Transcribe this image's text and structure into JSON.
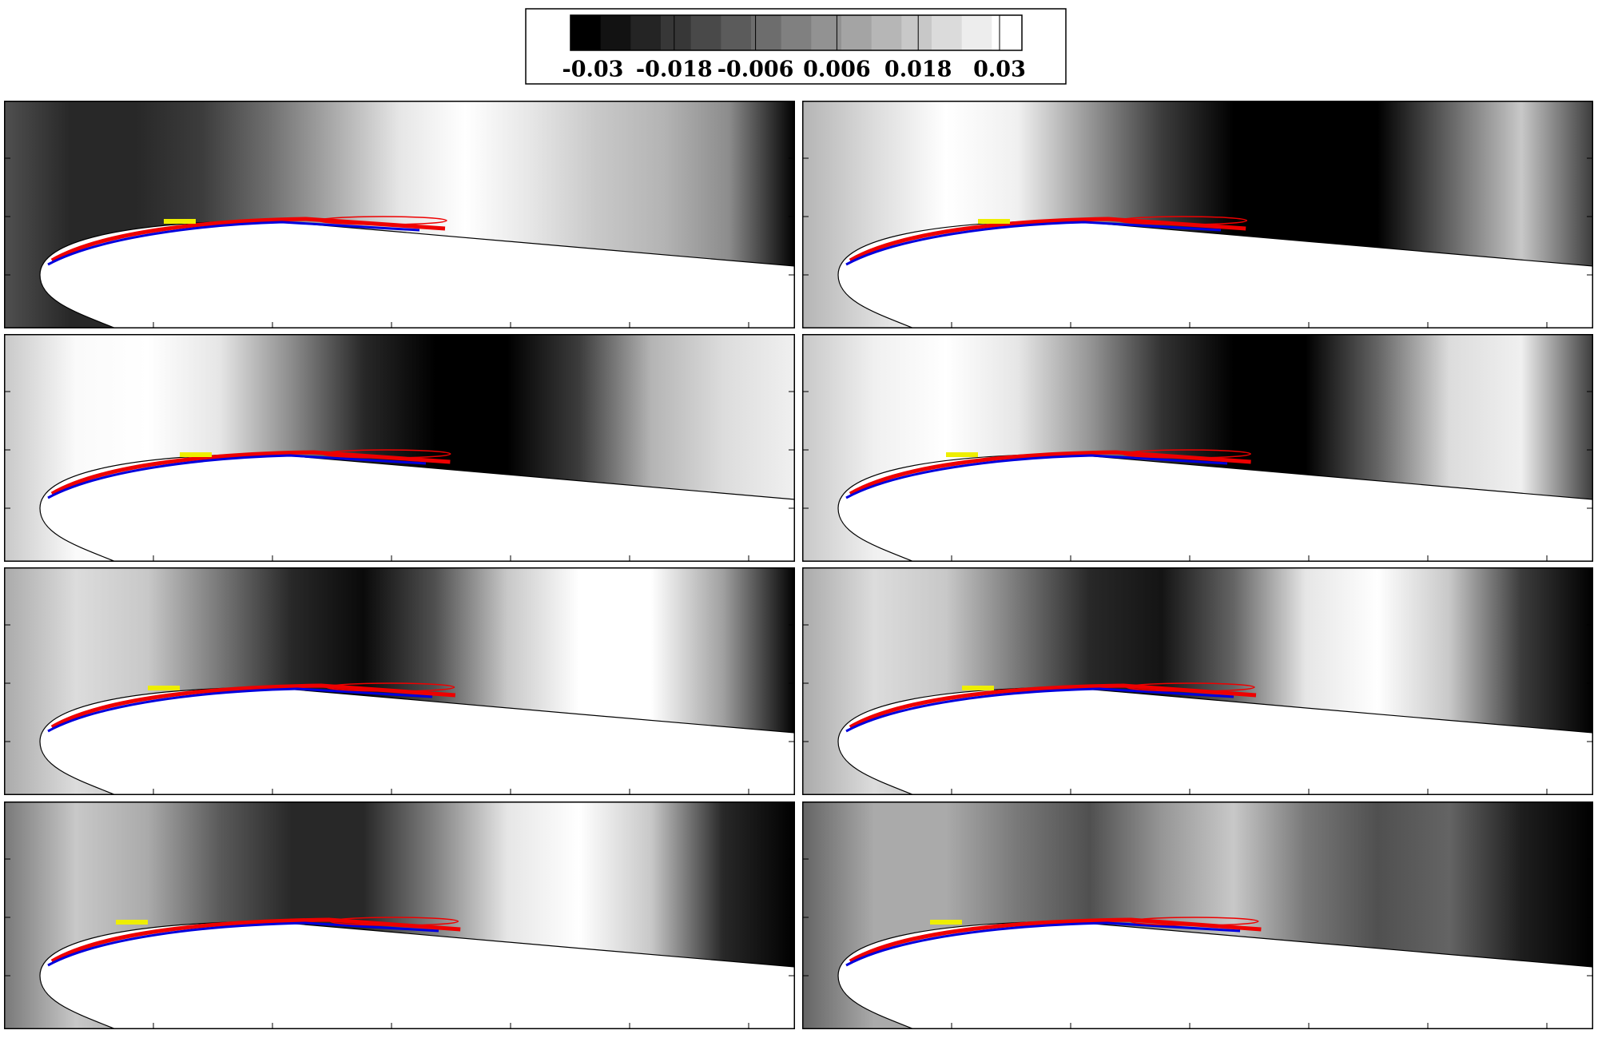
{
  "colorbar": {
    "lim": [
      -0.0333,
      0.0333
    ],
    "ticks": [
      -0.03,
      -0.018,
      -0.006,
      0.006,
      0.018,
      0.03
    ]
  }
}
